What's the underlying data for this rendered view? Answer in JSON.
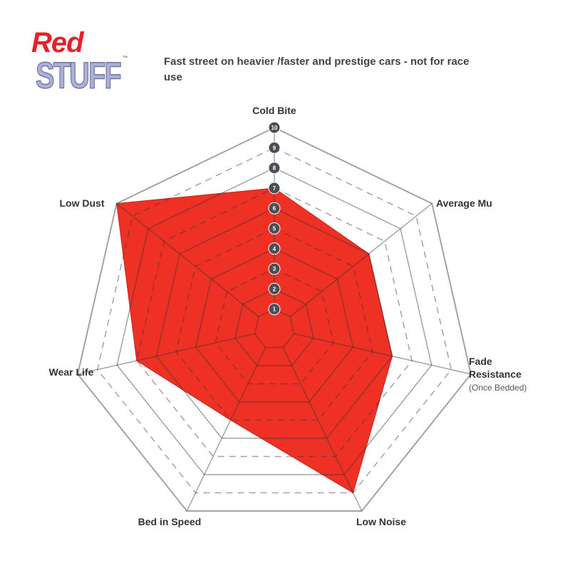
{
  "logo": {
    "line1": "Red",
    "line2": "STUFF",
    "tm": "™"
  },
  "subtitle": "Fast street on heavier /faster and prestige cars - not for race use",
  "chart_data": {
    "type": "radar",
    "title": "",
    "scale": {
      "min": 0,
      "max": 10,
      "tick_labels": [
        "1",
        "2",
        "3",
        "4",
        "5",
        "6",
        "7",
        "8",
        "9",
        "10"
      ]
    },
    "axes": [
      {
        "label": "Cold Bite",
        "sublabel": ""
      },
      {
        "label": "Average Mu",
        "sublabel": ""
      },
      {
        "label": "Fade Resistance",
        "sublabel": "(Once Bedded)"
      },
      {
        "label": "Low Noise",
        "sublabel": ""
      },
      {
        "label": "Bed in Speed",
        "sublabel": ""
      },
      {
        "label": "Wear Life",
        "sublabel": ""
      },
      {
        "label": "Low Dust",
        "sublabel": ""
      }
    ],
    "series": [
      {
        "values": [
          7,
          6,
          6,
          9,
          5,
          7,
          10
        ]
      }
    ],
    "colors": {
      "fill": "#ee3124",
      "grid": "#9a9a9a",
      "tick_badge": "#4a4f55"
    }
  }
}
